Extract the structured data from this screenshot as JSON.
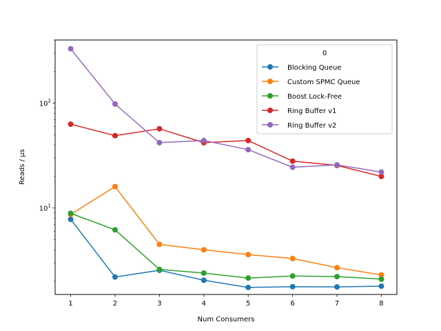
{
  "chart_data": {
    "type": "line",
    "xlabel": "Num Consumers",
    "ylabel": "Reads / µs",
    "yscale": "log",
    "x": [
      1,
      2,
      3,
      4,
      5,
      6,
      7,
      8
    ],
    "xlim": [
      0.65,
      8.35
    ],
    "ylim": [
      1.5,
      400
    ],
    "yticks": [
      {
        "value": 10,
        "label": "10",
        "sup": "1"
      },
      {
        "value": 100,
        "label": "10",
        "sup": "2"
      }
    ],
    "grid": false,
    "legend": {
      "title": "0",
      "placement": "top-right"
    },
    "series": [
      {
        "name": "Blocking Queue",
        "color": "#1f77b4",
        "values": [
          7.8,
          2.2,
          2.55,
          2.05,
          1.75,
          1.78,
          1.77,
          1.8
        ]
      },
      {
        "name": "Custom SPMC Queue",
        "color": "#ff7f0e",
        "values": [
          8.7,
          16.0,
          4.5,
          4.0,
          3.6,
          3.3,
          2.7,
          2.3
        ]
      },
      {
        "name": "Boost Lock-Free",
        "color": "#2ca02c",
        "values": [
          8.9,
          6.2,
          2.6,
          2.4,
          2.15,
          2.25,
          2.22,
          2.1
        ]
      },
      {
        "name": "Ring Buffer v1",
        "color": "#d62728",
        "values": [
          63,
          49,
          57,
          42,
          44,
          28,
          25.5,
          20
        ]
      },
      {
        "name": "Ring Buffer v2",
        "color": "#9467bd",
        "values": [
          330,
          98,
          42,
          44,
          36,
          24.5,
          25.8,
          22
        ]
      }
    ]
  }
}
